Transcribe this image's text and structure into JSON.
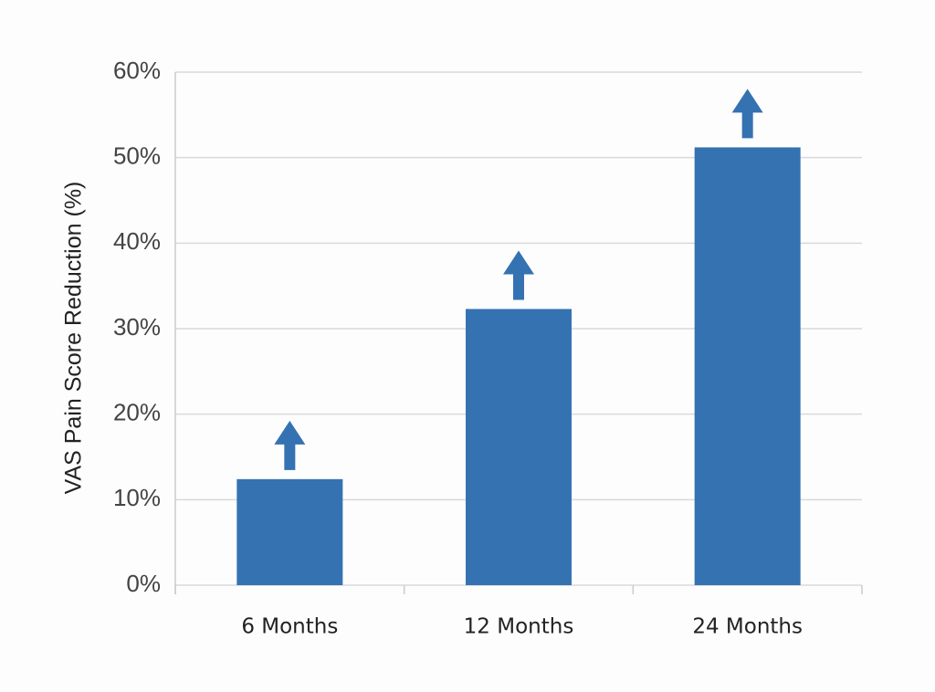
{
  "chart_data": {
    "type": "bar",
    "y_label": "VAS Pain Score Reduction (%)",
    "categories": [
      "6 Months",
      "12 Months",
      "24 Months"
    ],
    "values": [
      12.4,
      32.3,
      51.2
    ],
    "color": "#3572b2",
    "ylim": [
      0,
      60
    ],
    "yticks": [
      {
        "value": 0,
        "label": "0%"
      },
      {
        "value": 10,
        "label": "10%"
      },
      {
        "value": 20,
        "label": "20%"
      },
      {
        "value": 30,
        "label": "30%"
      },
      {
        "value": 40,
        "label": "40%"
      },
      {
        "value": 50,
        "label": "50%"
      },
      {
        "value": 60,
        "label": "60%"
      }
    ],
    "grid": true
  }
}
